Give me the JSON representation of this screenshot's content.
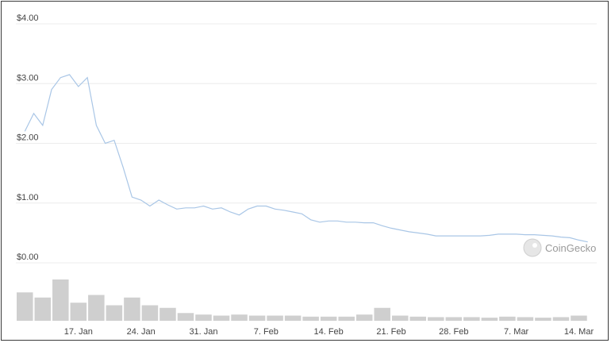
{
  "chart_data": [
    {
      "type": "line",
      "title": "",
      "xlabel": "",
      "ylabel": "",
      "y_tick_labels": [
        "$0.00",
        "$1.00",
        "$2.00",
        "$3.00",
        "$4.00"
      ],
      "y_ticks": [
        0,
        1,
        2,
        3,
        4
      ],
      "ylim": [
        0,
        4
      ],
      "x_tick_labels": [
        "17. Jan",
        "24. Jan",
        "31. Jan",
        "7. Feb",
        "14. Feb",
        "21. Feb",
        "28. Feb",
        "7. Mar",
        "14. Mar"
      ],
      "x_ticks": [
        "2022-01-17",
        "2022-01-24",
        "2022-01-31",
        "2022-02-07",
        "2022-02-14",
        "2022-02-21",
        "2022-02-28",
        "2022-03-07",
        "2022-03-14"
      ],
      "grid": true,
      "line_color": "#a9c6e6",
      "series": [
        {
          "x": [
            "2022-01-11",
            "2022-01-12",
            "2022-01-13",
            "2022-01-14",
            "2022-01-15",
            "2022-01-16",
            "2022-01-17",
            "2022-01-18",
            "2022-01-19",
            "2022-01-20",
            "2022-01-21",
            "2022-01-22",
            "2022-01-23",
            "2022-01-24",
            "2022-01-25",
            "2022-01-26",
            "2022-01-27",
            "2022-01-28",
            "2022-01-29",
            "2022-01-30",
            "2022-01-31",
            "2022-02-01",
            "2022-02-02",
            "2022-02-03",
            "2022-02-04",
            "2022-02-05",
            "2022-02-06",
            "2022-02-07",
            "2022-02-08",
            "2022-02-09",
            "2022-02-10",
            "2022-02-11",
            "2022-02-12",
            "2022-02-13",
            "2022-02-14",
            "2022-02-15",
            "2022-02-16",
            "2022-02-17",
            "2022-02-18",
            "2022-02-19",
            "2022-02-20",
            "2022-02-21",
            "2022-02-22",
            "2022-02-23",
            "2022-02-24",
            "2022-02-25",
            "2022-02-26",
            "2022-02-27",
            "2022-02-28",
            "2022-03-01",
            "2022-03-02",
            "2022-03-03",
            "2022-03-04",
            "2022-03-05",
            "2022-03-06",
            "2022-03-07",
            "2022-03-08",
            "2022-03-09",
            "2022-03-10",
            "2022-03-11",
            "2022-03-12",
            "2022-03-13",
            "2022-03-14",
            "2022-03-15"
          ],
          "values": [
            2.2,
            2.5,
            2.3,
            2.9,
            3.1,
            3.15,
            2.95,
            3.1,
            2.3,
            2.0,
            2.05,
            1.6,
            1.1,
            1.05,
            0.95,
            1.05,
            0.97,
            0.9,
            0.92,
            0.92,
            0.95,
            0.9,
            0.92,
            0.85,
            0.8,
            0.9,
            0.95,
            0.95,
            0.9,
            0.88,
            0.85,
            0.82,
            0.72,
            0.68,
            0.7,
            0.7,
            0.68,
            0.68,
            0.67,
            0.67,
            0.62,
            0.58,
            0.55,
            0.52,
            0.5,
            0.48,
            0.45,
            0.45,
            0.45,
            0.45,
            0.45,
            0.45,
            0.46,
            0.48,
            0.48,
            0.48,
            0.47,
            0.47,
            0.46,
            0.45,
            0.43,
            0.42,
            0.38,
            0.35
          ]
        }
      ],
      "volume": {
        "x": [
          "2022-01-11",
          "2022-01-13",
          "2022-01-15",
          "2022-01-17",
          "2022-01-19",
          "2022-01-21",
          "2022-01-23",
          "2022-01-25",
          "2022-01-27",
          "2022-01-29",
          "2022-01-31",
          "2022-02-02",
          "2022-02-04",
          "2022-02-06",
          "2022-02-08",
          "2022-02-10",
          "2022-02-12",
          "2022-02-14",
          "2022-02-16",
          "2022-02-18",
          "2022-02-20",
          "2022-02-22",
          "2022-02-24",
          "2022-02-26",
          "2022-02-28",
          "2022-03-02",
          "2022-03-04",
          "2022-03-06",
          "2022-03-08",
          "2022-03-10",
          "2022-03-12",
          "2022-03-14"
        ],
        "values": [
          0.55,
          0.45,
          0.8,
          0.35,
          0.5,
          0.3,
          0.45,
          0.3,
          0.25,
          0.15,
          0.12,
          0.1,
          0.12,
          0.1,
          0.1,
          0.1,
          0.08,
          0.08,
          0.08,
          0.12,
          0.25,
          0.1,
          0.08,
          0.07,
          0.07,
          0.07,
          0.06,
          0.08,
          0.07,
          0.06,
          0.07,
          0.1
        ]
      }
    }
  ],
  "watermark": {
    "text": "CoinGecko",
    "icon": "gecko-logo-icon"
  }
}
